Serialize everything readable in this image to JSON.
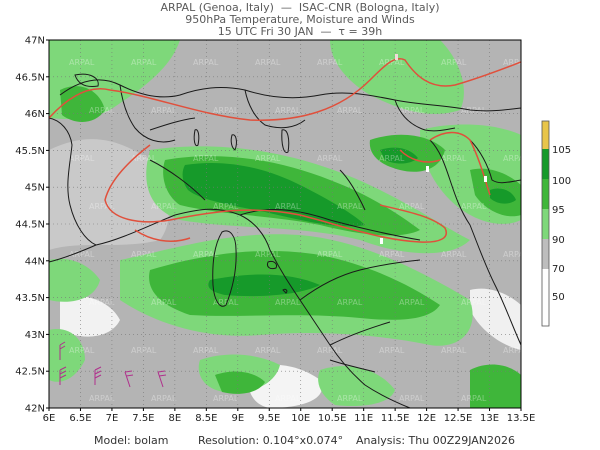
{
  "header": {
    "line1": "ARPAL (Genoa, Italy)  —  ISAC-CNR (Bologna, Italy)",
    "line2": "950hPa Temperature, Moisture and Winds",
    "line3": "15 UTC Fri 30 JAN  —  τ = 39h"
  },
  "map": {
    "lat_labels": [
      "47N",
      "46.5N",
      "46N",
      "45.5N",
      "45N",
      "44.5N",
      "44N",
      "43.5N",
      "43N",
      "42.5N",
      "42N"
    ],
    "lon_labels": [
      "6E",
      "6.5E",
      "7E",
      "7.5E",
      "8E",
      "8.5E",
      "9E",
      "9.5E",
      "10E",
      "10.5E",
      "11E",
      "11.5E",
      "12E",
      "12.5E",
      "13E",
      "13.5E"
    ],
    "watermark": "ARPAL"
  },
  "colorbar": {
    "labels": [
      "105",
      "100",
      "95",
      "90",
      "70",
      "50"
    ],
    "colors": [
      "#e8c54a",
      "#169a2a",
      "#3fb63a",
      "#7ed87a",
      "#bdbdbd",
      "#ffffff"
    ]
  },
  "footer": {
    "model_label": "Model:",
    "model_value": "bolam",
    "resolution_label": "Resolution:",
    "resolution_value": "0.104°x0.074°",
    "analysis_label": "Analysis:",
    "analysis_value": "Thu 00Z29JAN2026"
  }
}
